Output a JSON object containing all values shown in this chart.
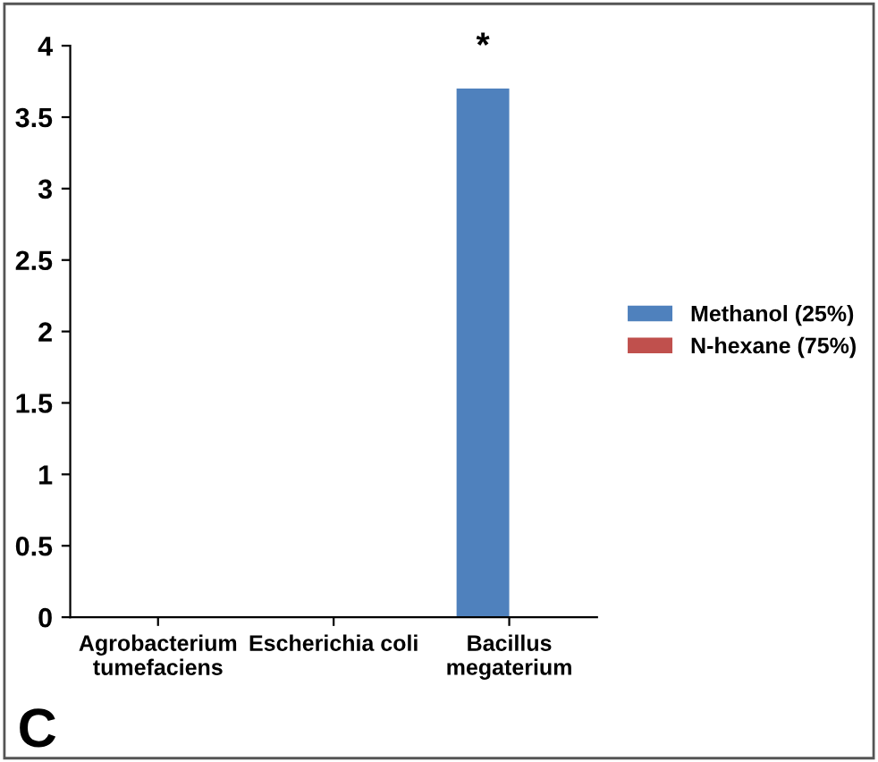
{
  "chart_data": {
    "type": "bar",
    "categories": [
      "Agrobacterium\ntumefaciens",
      "Escherichia coli",
      "Bacillus\nmegaterium"
    ],
    "series": [
      {
        "name": "Methanol (25%)",
        "color": "#4f81bd",
        "values": [
          0,
          0,
          3.7
        ]
      },
      {
        "name": "N-hexane (75%)",
        "color": "#c0504d",
        "values": [
          0,
          0,
          0
        ]
      }
    ],
    "ylim": [
      0,
      4
    ],
    "yticks": [
      0,
      0.5,
      1,
      1.5,
      2,
      2.5,
      3,
      3.5,
      4
    ],
    "grid": false,
    "legend": "right",
    "annotations": [
      {
        "text": "*",
        "x": "Bacillus\nmegaterium",
        "y": 3.7
      },
      "C"
    ]
  }
}
